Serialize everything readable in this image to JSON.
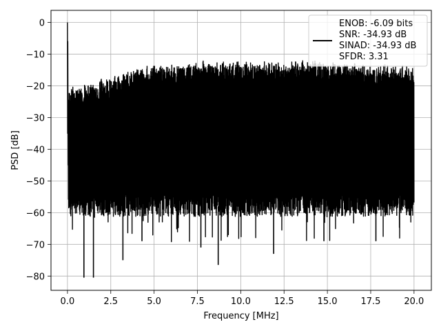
{
  "chart_data": {
    "type": "line",
    "title": "",
    "xlabel": "Frequency [MHz]",
    "ylabel": "PSD [dB]",
    "xlim": [
      -0.95,
      21.0
    ],
    "ylim": [
      -84.5,
      3.8
    ],
    "x_ticks": [
      0.0,
      2.5,
      5.0,
      7.5,
      10.0,
      12.5,
      15.0,
      17.5,
      20.0
    ],
    "x_tick_labels": [
      "0.0",
      "2.5",
      "5.0",
      "7.5",
      "10.0",
      "12.5",
      "15.0",
      "17.5",
      "20.0"
    ],
    "y_ticks": [
      0,
      -10,
      -20,
      -30,
      -40,
      -50,
      -60,
      -70,
      -80
    ],
    "y_tick_labels": [
      "0",
      "−10",
      "−20",
      "−30",
      "−40",
      "−50",
      "−60",
      "−70",
      "−80"
    ],
    "grid": true,
    "legend_position": "top-right",
    "series": [
      {
        "name": "ENOB: -6.09 bits\nSNR: -34.93 dB\nSINAD: -34.93 dB\nSFDR: 3.31",
        "color": "#000000",
        "x_range": [
          0.0,
          20.0
        ],
        "peak": {
          "x": 0.0,
          "y": 0.0
        },
        "upper_envelope": [
          {
            "x": 0.05,
            "y": -20
          },
          {
            "x": 1.0,
            "y": -19
          },
          {
            "x": 2.5,
            "y": -17
          },
          {
            "x": 4.0,
            "y": -14
          },
          {
            "x": 5.5,
            "y": -13
          },
          {
            "x": 7.5,
            "y": -12
          },
          {
            "x": 10.0,
            "y": -12
          },
          {
            "x": 12.5,
            "y": -12
          },
          {
            "x": 15.0,
            "y": -12
          },
          {
            "x": 17.5,
            "y": -13
          },
          {
            "x": 20.0,
            "y": -13
          }
        ],
        "noise_floor_typical": -58,
        "deep_nulls": [
          {
            "x": 0.95,
            "y": -80.5
          },
          {
            "x": 1.5,
            "y": -80.5
          },
          {
            "x": 3.2,
            "y": -75
          },
          {
            "x": 4.3,
            "y": -69
          },
          {
            "x": 7.7,
            "y": -71
          },
          {
            "x": 8.7,
            "y": -76.5
          },
          {
            "x": 11.9,
            "y": -73
          },
          {
            "x": 14.8,
            "y": -69
          },
          {
            "x": 17.8,
            "y": -69
          }
        ]
      }
    ]
  }
}
